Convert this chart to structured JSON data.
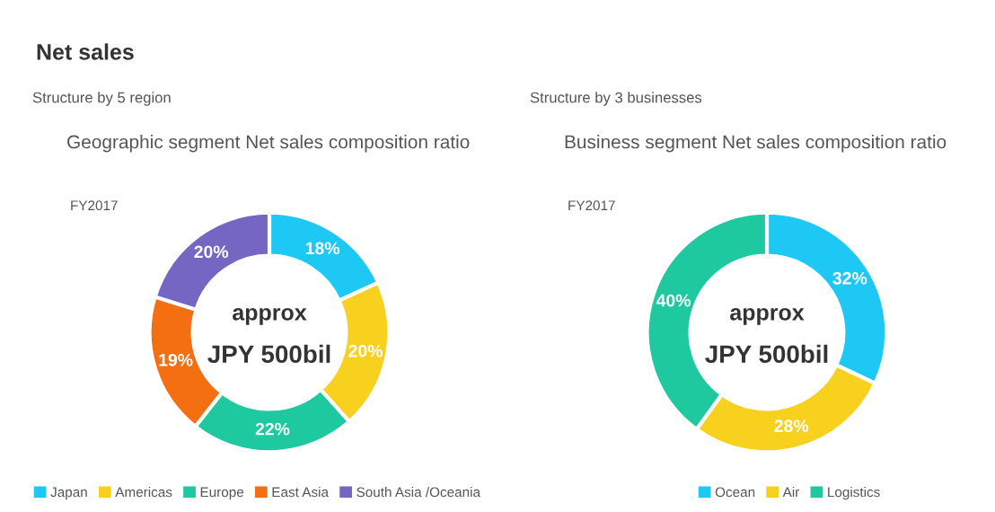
{
  "chart_data": [
    {
      "type": "donut",
      "title": "Geographic segment Net sales composition ratio",
      "subtitle": "FY2017",
      "categories": [
        "Japan",
        "Americas",
        "Europe",
        "East Asia",
        "South Asia /Oceania"
      ],
      "values": [
        18,
        20,
        22,
        19,
        20
      ],
      "value_labels": [
        "18%",
        "20%",
        "22%",
        "19%",
        "20%"
      ],
      "colors": [
        "#1ec8f5",
        "#f7d11e",
        "#1ec9a0",
        "#f36f12",
        "#7466c2"
      ],
      "annotations": [
        "Net sales",
        "Structure by 5 region",
        "approx",
        "JPY 500bil"
      ],
      "legend": "bottom"
    },
    {
      "type": "donut",
      "title": "Business segment Net sales composition ratio",
      "subtitle": "FY2017",
      "categories": [
        "Ocean",
        "Air",
        "Logistics"
      ],
      "values": [
        32,
        28,
        40
      ],
      "value_labels": [
        "32%",
        "28%",
        "40%"
      ],
      "colors": [
        "#1ec8f5",
        "#f7d11e",
        "#1ec9a0"
      ],
      "annotations": [
        "Structure by 3 businesses",
        "approx",
        "JPY 500bil"
      ],
      "legend": "bottom"
    }
  ]
}
